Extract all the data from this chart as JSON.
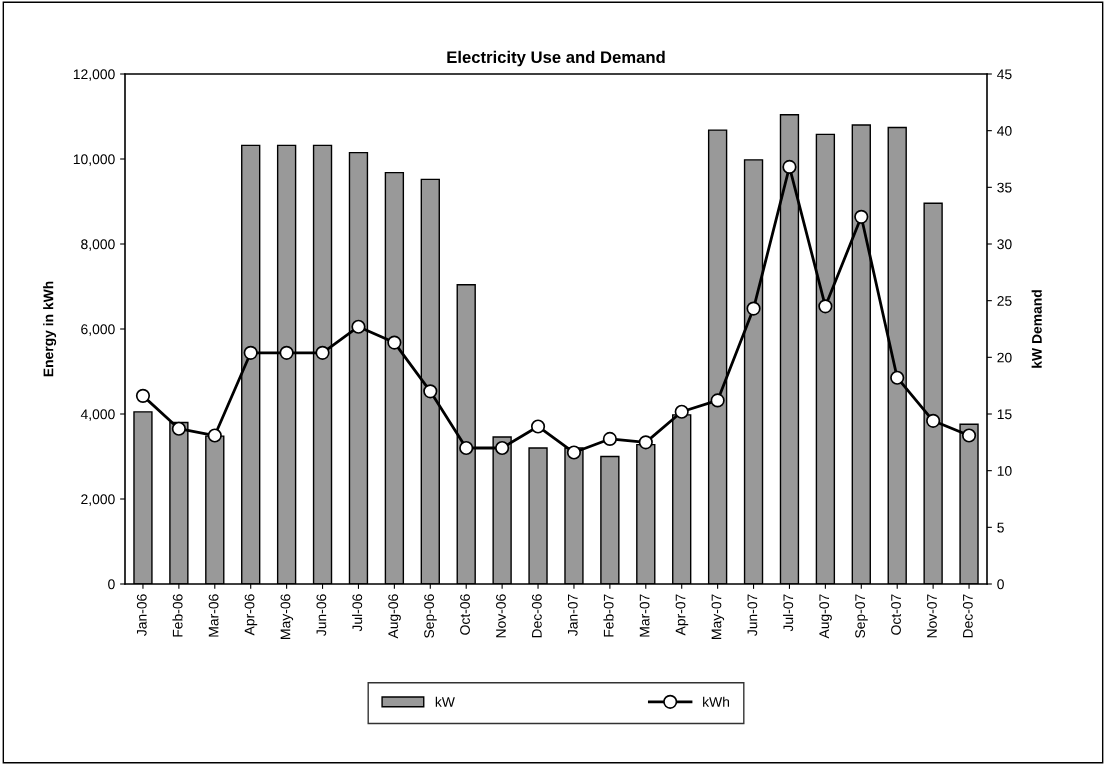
{
  "chart_data": {
    "type": "bar",
    "title": "Electricity Use and Demand",
    "ylabel": "Energy in kWh",
    "y2label": "kW Demand",
    "categories": [
      "Jan-06",
      "Feb-06",
      "Mar-06",
      "Apr-06",
      "May-06",
      "Jun-06",
      "Jul-06",
      "Aug-06",
      "Sep-06",
      "Oct-06",
      "Nov-06",
      "Dec-06",
      "Jan-07",
      "Feb-07",
      "Mar-07",
      "Apr-07",
      "May-07",
      "Jun-07",
      "Jul-07",
      "Aug-07",
      "Sep-07",
      "Oct-07",
      "Nov-07",
      "Dec-07"
    ],
    "series": [
      {
        "name": "kW",
        "color": "#999999",
        "values": [
          4050,
          3800,
          3480,
          10320,
          10320,
          10320,
          10150,
          9680,
          9520,
          7040,
          3460,
          3200,
          3200,
          3000,
          3280,
          3980,
          10680,
          9980,
          11040,
          10580,
          10800,
          10740,
          8960,
          3760
        ]
      },
      {
        "name": "kWh",
        "type": "line",
        "axis": "y2",
        "color": "#000000",
        "marker": "circle",
        "values": [
          16.6,
          13.7,
          13.1,
          20.4,
          20.4,
          20.4,
          22.7,
          21.3,
          17.0,
          12.0,
          12.0,
          13.9,
          11.6,
          12.8,
          12.5,
          15.2,
          16.2,
          24.3,
          36.8,
          24.5,
          32.4,
          18.2,
          14.4,
          13.1
        ]
      }
    ],
    "ylim": [
      0,
      12000
    ],
    "yticks": [
      0,
      {
        "value": 2000,
        "label": "2,000"
      },
      {
        "value": 4000,
        "label": "4,000"
      },
      {
        "value": 6000,
        "label": "6,000"
      },
      {
        "value": 8000,
        "label": "8,000"
      },
      {
        "value": 10000,
        "label": "10,000"
      },
      {
        "value": 12000,
        "label": "12,000"
      }
    ],
    "y2lim": [
      0,
      45
    ],
    "y2ticks": [
      0,
      5,
      10,
      15,
      20,
      25,
      30,
      35,
      40,
      45
    ],
    "grid": false,
    "legend": "bottom"
  }
}
